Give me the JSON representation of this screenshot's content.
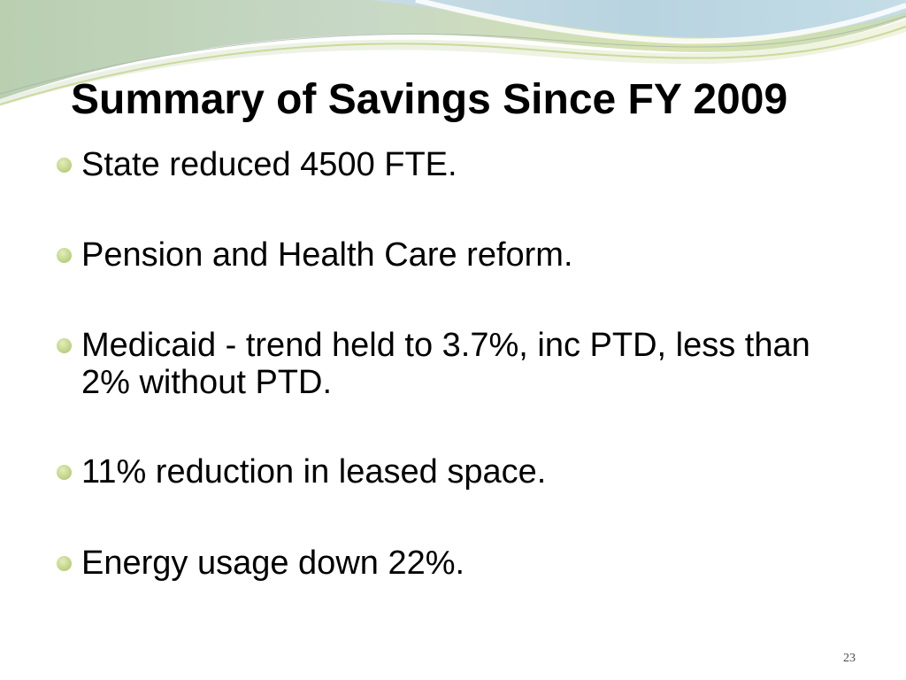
{
  "slide": {
    "title": "Summary of Savings Since FY 2009",
    "bullets": [
      "State reduced 4500 FTE.",
      "Pension and Health Care reform.",
      "Medicaid - trend held to 3.7%, inc PTD, less than 2% without PTD.",
      "11% reduction in leased space.",
      "Energy usage down 22%."
    ],
    "page_number": "23"
  },
  "colors": {
    "bullet": "#c3d68a",
    "title_text": "#000000",
    "wave_green": "#d3e0ab",
    "wave_blue": "#b7d3df"
  }
}
